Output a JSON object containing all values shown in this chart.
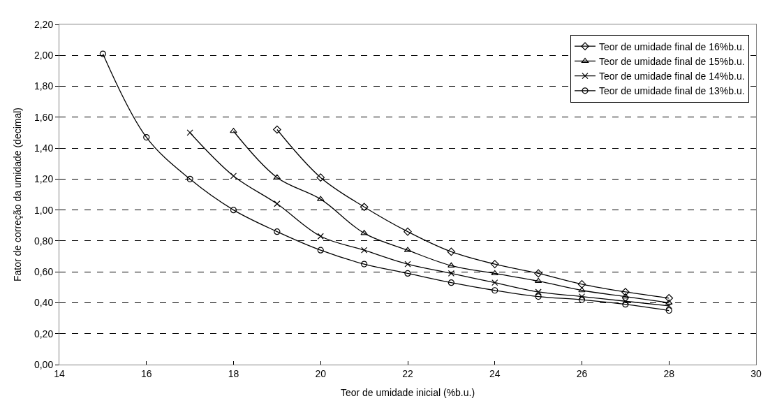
{
  "chart_data": {
    "type": "line",
    "xlabel": "Teor de umidade inicial (%b.u.)",
    "ylabel": "Fator de correção da umidade (decimal)",
    "xlim": [
      14,
      30
    ],
    "xticks": [
      14,
      16,
      18,
      20,
      22,
      24,
      26,
      28,
      30
    ],
    "ylim": [
      0,
      2.2
    ],
    "yticks": [
      {
        "value": 0,
        "label": "0,00"
      },
      {
        "value": 0.2,
        "label": "0,20"
      },
      {
        "value": 0.4,
        "label": "0,40"
      },
      {
        "value": 0.6,
        "label": "0,60"
      },
      {
        "value": 0.8,
        "label": "0,80"
      },
      {
        "value": 1.0,
        "label": "1,00"
      },
      {
        "value": 1.2,
        "label": "1,20"
      },
      {
        "value": 1.4,
        "label": "1,40"
      },
      {
        "value": 1.6,
        "label": "1,60"
      },
      {
        "value": 1.8,
        "label": "1,80"
      },
      {
        "value": 2.0,
        "label": "2,00"
      },
      {
        "value": 2.2,
        "label": "2,20"
      }
    ],
    "grid": "y",
    "legend": "top right",
    "line_style": "solid",
    "series": [
      {
        "name": "Teor de umidade final de 16%b.u.",
        "color": "#000000",
        "marker": "diamond",
        "x": [
          19,
          20,
          21,
          22,
          23,
          24,
          25,
          26,
          27,
          28
        ],
        "values": [
          1.52,
          1.21,
          1.02,
          0.86,
          0.73,
          0.65,
          0.59,
          0.52,
          0.47,
          0.43
        ]
      },
      {
        "name": "Teor de umidade final de 15%b.u.",
        "color": "#000000",
        "marker": "triangle",
        "x": [
          18,
          19,
          20,
          21,
          22,
          23,
          24,
          25,
          26,
          27,
          28
        ],
        "values": [
          1.51,
          1.21,
          1.07,
          0.85,
          0.74,
          0.64,
          0.59,
          0.54,
          0.48,
          0.44,
          0.4
        ]
      },
      {
        "name": "Teor de umidade final de 14%b.u.",
        "color": "#000000",
        "marker": "cross",
        "x": [
          17,
          18,
          19,
          20,
          21,
          22,
          23,
          24,
          25,
          26,
          27,
          28
        ],
        "values": [
          1.5,
          1.22,
          1.04,
          0.83,
          0.74,
          0.65,
          0.59,
          0.53,
          0.47,
          0.44,
          0.41,
          0.38
        ]
      },
      {
        "name": "Teor de umidade final de 13%b.u.",
        "color": "#000000",
        "marker": "circle",
        "x": [
          15,
          16,
          17,
          18,
          19,
          20,
          21,
          22,
          23,
          24,
          25,
          26,
          27,
          28
        ],
        "values": [
          2.01,
          1.47,
          1.2,
          1.0,
          0.86,
          0.74,
          0.65,
          0.59,
          0.53,
          0.48,
          0.44,
          0.42,
          0.39,
          0.35
        ]
      }
    ]
  }
}
